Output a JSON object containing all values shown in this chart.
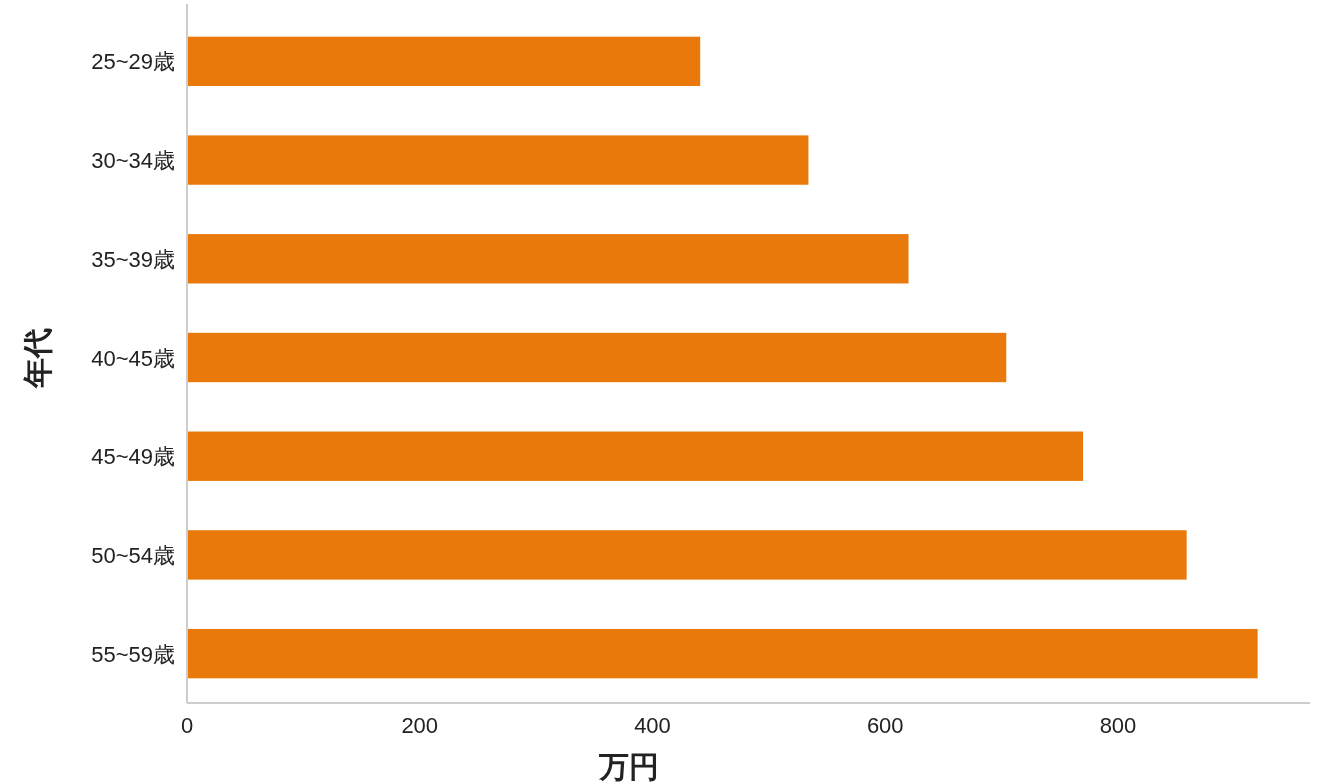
{
  "chart_data": {
    "type": "bar",
    "orientation": "horizontal",
    "xlabel": "万円",
    "ylabel": "年代",
    "categories": [
      "25~29歳",
      "30~34歳",
      "35~39歳",
      "40~45歳",
      "45~49歳",
      "50~54歳",
      "55~59歳"
    ],
    "values": [
      441,
      534,
      620,
      704,
      770,
      859,
      920
    ],
    "color": "#e8790a",
    "xlim": [
      0,
      965
    ],
    "xticks": [
      0,
      200,
      400,
      600,
      800
    ],
    "grid": false
  }
}
